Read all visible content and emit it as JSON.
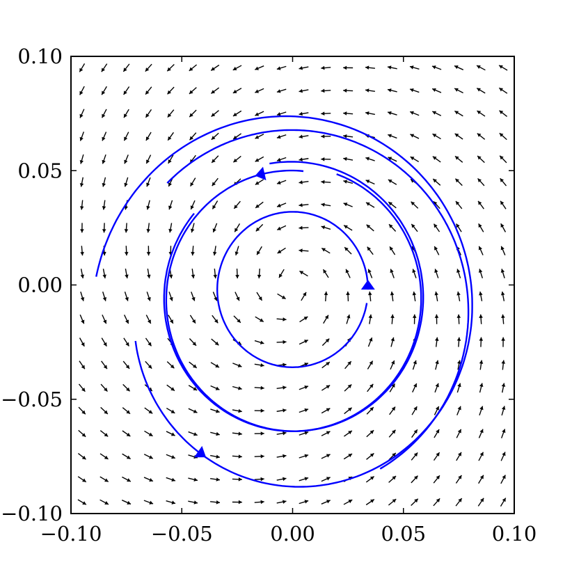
{
  "chart_data": {
    "type": "quiver",
    "title": "",
    "xlabel": "",
    "ylabel": "",
    "xlim": [
      -0.1,
      0.1
    ],
    "ylim": [
      -0.1,
      0.1
    ],
    "xticks": [
      -0.1,
      -0.05,
      0.0,
      0.05,
      0.1
    ],
    "yticks": [
      -0.1,
      -0.05,
      0.0,
      0.05,
      0.1
    ],
    "xtick_labels": [
      "−0.10",
      "−0.05",
      "0.00",
      "0.05",
      "0.10"
    ],
    "ytick_labels": [
      "−0.10",
      "−0.05",
      "0.00",
      "0.05",
      "0.10"
    ],
    "grid": false,
    "vector_field": {
      "grid_size": 20,
      "range": [
        -0.095,
        0.095
      ],
      "color": "#000000",
      "description": "counter-clockwise rotation about origin"
    },
    "trajectories": [
      {
        "name": "inner",
        "color": "#0000ff",
        "center": [
          0.0,
          -0.002
        ],
        "r_start": 0.034,
        "r_end": 0.034,
        "theta_start_deg": 0,
        "theta_end_deg": 350,
        "arrow_at_deg": 0
      },
      {
        "name": "middle",
        "color": "#0000ff",
        "center": [
          0.0,
          -0.006
        ],
        "r_start": 0.056,
        "r_end": 0.06,
        "theta_start_deg": 85,
        "theta_end_deg": 460,
        "arrow_at_deg": 103
      },
      {
        "name": "middle-2",
        "color": "#0000ff",
        "center": [
          0.0,
          -0.006
        ],
        "r_start": 0.058,
        "r_end": 0.058,
        "theta_start_deg": 140,
        "theta_end_deg": 430
      },
      {
        "name": "outer",
        "color": "#0000ff",
        "center": [
          0.0,
          -0.012
        ],
        "r_start": 0.072,
        "r_end": 0.09,
        "theta_start_deg": 190,
        "theta_end_deg": 530,
        "arrow_at_deg": 235
      },
      {
        "name": "outer-2",
        "color": "#0000ff",
        "center": [
          0.0,
          -0.012
        ],
        "r_start": 0.079,
        "r_end": 0.08,
        "theta_start_deg": 300,
        "theta_end_deg": 495
      }
    ]
  }
}
